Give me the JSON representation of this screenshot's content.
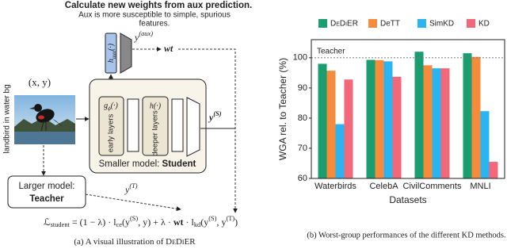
{
  "diagram": {
    "title": "Calculate new weights from aux prediction.",
    "subtitle_lines": [
      "Aux is more susceptible to simple, spurious",
      "features."
    ],
    "aux_head": [
      {
        "text": "h"
      },
      {
        "text": "aux",
        "style": "sub"
      },
      {
        "text": "(·)"
      }
    ],
    "aux_output": [
      {
        "text": "y"
      },
      {
        "text": "(aux)",
        "style": "sup"
      }
    ],
    "weight": "wt",
    "input": "(x, y)",
    "image_label": "landbird in water bg",
    "early_fn": [
      {
        "text": "g"
      },
      {
        "text": "ϕ",
        "style": "sub"
      },
      {
        "text": "(·)"
      }
    ],
    "early_label": "early layers",
    "deep_fn": "h(·)",
    "deep_label": "deeper layers",
    "student_prefix": "Smaller model: ",
    "student_name": "Student",
    "student_output": [
      {
        "text": "y"
      },
      {
        "text": "(S)",
        "style": "sup"
      }
    ],
    "teacher_prefix": "Larger model:",
    "teacher_name": "Teacher",
    "teacher_output": [
      {
        "text": "y"
      },
      {
        "text": "(T)",
        "style": "sup"
      }
    ],
    "loss": [
      {
        "text": "ℒ"
      },
      {
        "text": "student",
        "style": "sub"
      },
      {
        "text": " = (1 − λ) · "
      },
      {
        "text": "l"
      },
      {
        "text": "ce",
        "style": "sub"
      },
      {
        "text": "(y"
      },
      {
        "text": "(S)",
        "style": "sup"
      },
      {
        "text": ", y) + λ · "
      },
      {
        "text": "wt",
        "style": "bold"
      },
      {
        "text": " · "
      },
      {
        "text": "l"
      },
      {
        "text": "kd",
        "style": "sub"
      },
      {
        "text": "(y"
      },
      {
        "text": "(S)",
        "style": "sup"
      },
      {
        "text": ", y"
      },
      {
        "text": "(T)",
        "style": "sup"
      },
      {
        "text": ")"
      }
    ],
    "caption": [
      {
        "text": "(a) A visual illustration of "
      },
      {
        "text": "DeDiER",
        "style": "smallcaps"
      }
    ]
  },
  "chart_data": {
    "type": "bar",
    "categories": [
      "Waterbirds",
      "CelebA",
      "CivilComments",
      "MNLI"
    ],
    "series": [
      {
        "name": "DeDiER",
        "color": "#1b9e6f",
        "values": [
          98,
          99.3,
          102,
          101.5
        ]
      },
      {
        "name": "DeTT",
        "color": "#f68b3c",
        "values": [
          95.7,
          99.2,
          97.5,
          100.3
        ]
      },
      {
        "name": "SimKD",
        "color": "#2bb5f0",
        "values": [
          78,
          98.8,
          96.5,
          82.3
        ]
      },
      {
        "name": "KD",
        "color": "#f2677a",
        "values": [
          92.8,
          93.7,
          96.5,
          65.5
        ]
      }
    ],
    "ylim": [
      60,
      106
    ],
    "yticks": [
      60,
      70,
      80,
      90,
      100
    ],
    "y_label": "WGA rel. to Teacher (%)",
    "x_label": "Datasets",
    "reference_line": {
      "value": 100,
      "label": "Teacher"
    },
    "legend": "top",
    "caption": "(b) Worst-group performances of the different KD methods."
  }
}
